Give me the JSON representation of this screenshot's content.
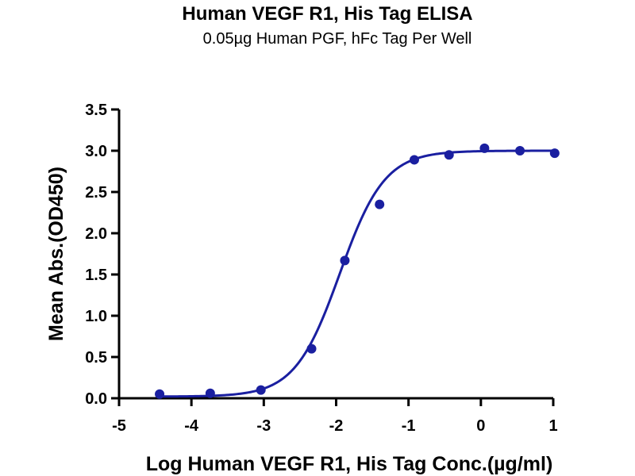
{
  "chart_data": {
    "type": "scatter",
    "title": "Human VEGF R1, His Tag ELISA",
    "subtitle": "0.05µg Human PGF, hFc Tag Per Well",
    "xlabel": "Log Human VEGF R1, His Tag Conc.(µg/ml)",
    "ylabel": "Mean Abs.(OD450)",
    "xlim": [
      -5,
      1
    ],
    "ylim": [
      0,
      3.5
    ],
    "x_ticks": [
      "-5",
      "-4",
      "-3",
      "-2",
      "-1",
      "0",
      "1"
    ],
    "y_ticks": [
      "0.0",
      "0.5",
      "1.0",
      "1.5",
      "2.0",
      "2.5",
      "3.0",
      "3.5"
    ],
    "grid": false,
    "series": [
      {
        "color": "#1a1fa0",
        "points": [
          {
            "x": -4.44,
            "y": 0.05
          },
          {
            "x": -3.74,
            "y": 0.06
          },
          {
            "x": -3.04,
            "y": 0.1
          },
          {
            "x": -2.34,
            "y": 0.6
          },
          {
            "x": -1.88,
            "y": 1.67
          },
          {
            "x": -1.4,
            "y": 2.35
          },
          {
            "x": -0.92,
            "y": 2.89
          },
          {
            "x": -0.44,
            "y": 2.95
          },
          {
            "x": 0.05,
            "y": 3.03
          },
          {
            "x": 0.54,
            "y": 3.0
          },
          {
            "x": 1.02,
            "y": 2.97
          }
        ],
        "fit": {
          "model": "4PL",
          "bottom": 0.02,
          "top": 3.0,
          "logEC50": -1.95,
          "hill": 1.4
        }
      }
    ]
  }
}
